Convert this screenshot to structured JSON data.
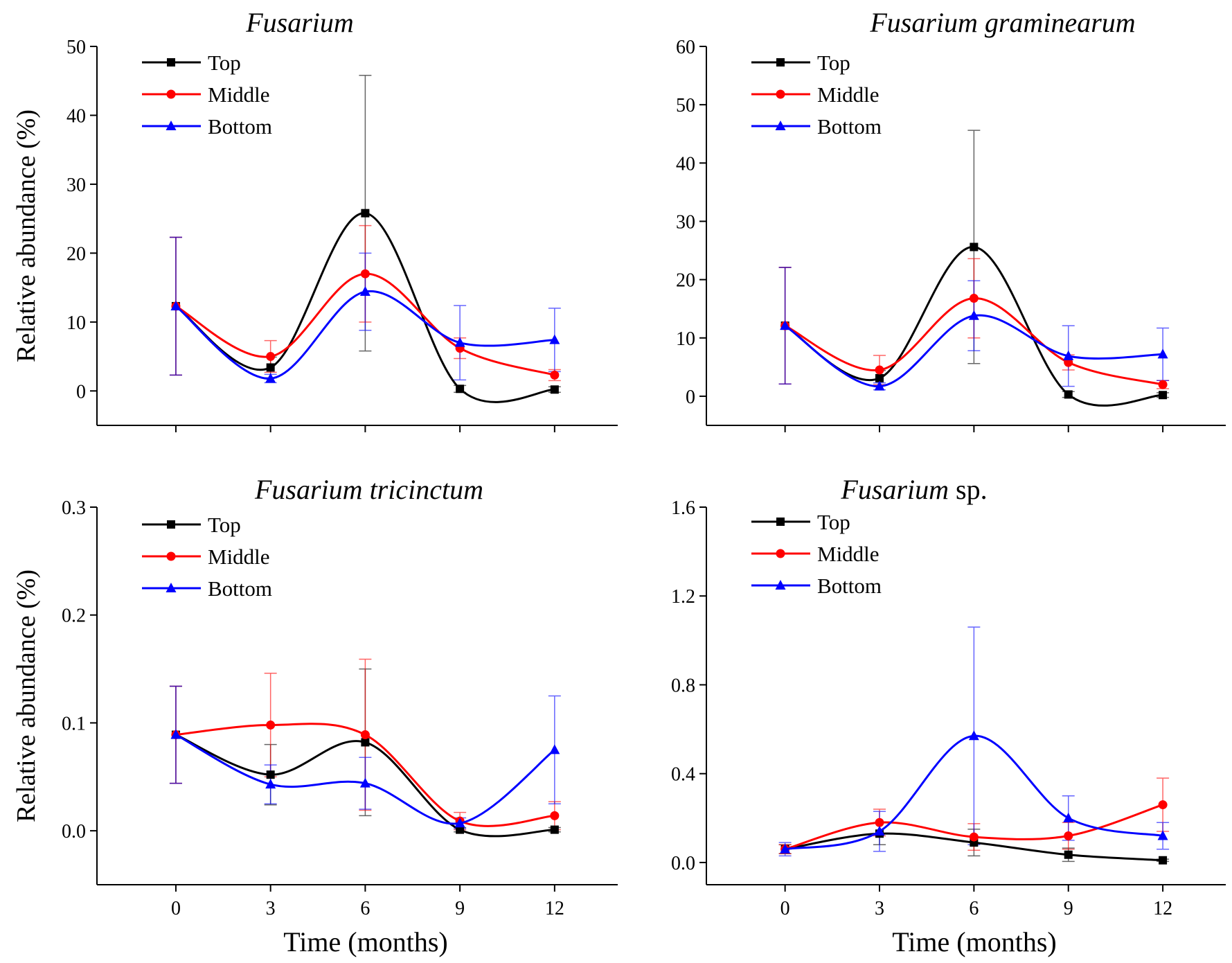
{
  "chart_data": [
    {
      "type": "line",
      "title_italic": "Fusarium",
      "title_suffix": "",
      "ylabel": "Relative abundance (%)",
      "xlabel": "",
      "ylim": [
        -5,
        50
      ],
      "yticks": [
        0,
        10,
        20,
        30,
        40,
        50
      ],
      "ytick_labels": [
        "0",
        "10",
        "20",
        "30",
        "40",
        "50"
      ],
      "x": [
        0,
        3,
        6,
        9,
        12
      ],
      "xtick_labels": [
        "",
        "",
        "",
        "",
        ""
      ],
      "series": [
        {
          "name": "Top",
          "color": "#000000",
          "marker": "square",
          "values": [
            12.3,
            3.4,
            25.8,
            0.3,
            0.2
          ],
          "err_lo": [
            10,
            1.5,
            20,
            0.5,
            0.4
          ],
          "err_hi": [
            10,
            1.5,
            20,
            0.5,
            0.4
          ]
        },
        {
          "name": "Middle",
          "color": "#ff0000",
          "marker": "circle",
          "values": [
            12.3,
            5.0,
            17.0,
            6.2,
            2.3
          ],
          "err_lo": [
            10,
            2.3,
            7.0,
            1.5,
            0.8
          ],
          "err_hi": [
            10,
            2.3,
            7.0,
            1.5,
            0.8
          ]
        },
        {
          "name": "Bottom",
          "color": "#0000ff",
          "marker": "triangle",
          "values": [
            12.3,
            1.8,
            14.4,
            7.0,
            7.4
          ],
          "err_lo": [
            10,
            0.6,
            5.6,
            5.4,
            4.6
          ],
          "err_hi": [
            10,
            0.6,
            5.6,
            5.4,
            4.6
          ]
        }
      ]
    },
    {
      "type": "line",
      "title_italic": "Fusarium graminearum",
      "title_suffix": "",
      "ylabel": "",
      "xlabel": "",
      "ylim": [
        -5,
        60
      ],
      "yticks": [
        0,
        10,
        20,
        30,
        40,
        50,
        60
      ],
      "ytick_labels": [
        "0",
        "10",
        "20",
        "30",
        "40",
        "50",
        "60"
      ],
      "x": [
        0,
        3,
        6,
        9,
        12
      ],
      "xtick_labels": [
        "",
        "",
        "",
        "",
        ""
      ],
      "series": [
        {
          "name": "Top",
          "color": "#000000",
          "marker": "square",
          "values": [
            12.1,
            3.1,
            25.6,
            0.3,
            0.2
          ],
          "err_lo": [
            10,
            1.3,
            20,
            0.5,
            0.4
          ],
          "err_hi": [
            10,
            1.3,
            20,
            0.5,
            0.4
          ]
        },
        {
          "name": "Middle",
          "color": "#ff0000",
          "marker": "circle",
          "values": [
            12.1,
            4.5,
            16.8,
            5.8,
            2.0
          ],
          "err_lo": [
            10,
            2.5,
            6.8,
            1.3,
            0.7
          ],
          "err_hi": [
            10,
            2.5,
            6.8,
            1.3,
            0.7
          ]
        },
        {
          "name": "Bottom",
          "color": "#0000ff",
          "marker": "triangle",
          "values": [
            12.1,
            1.7,
            13.8,
            6.9,
            7.2
          ],
          "err_lo": [
            10,
            0.6,
            6.0,
            5.2,
            4.5
          ],
          "err_hi": [
            10,
            0.6,
            6.0,
            5.2,
            4.5
          ]
        }
      ]
    },
    {
      "type": "line",
      "title_italic": "Fusarium tricinctum",
      "title_suffix": "",
      "ylabel": "Relative abundance (%)",
      "xlabel": "Time (months)",
      "ylim": [
        -0.05,
        0.3
      ],
      "yticks": [
        0.0,
        0.1,
        0.2,
        0.3
      ],
      "ytick_labels": [
        "0.0",
        "0.1",
        "0.2",
        "0.3"
      ],
      "x": [
        0,
        3,
        6,
        9,
        12
      ],
      "xtick_labels": [
        "0",
        "3",
        "6",
        "9",
        "12"
      ],
      "series": [
        {
          "name": "Top",
          "color": "#000000",
          "marker": "square",
          "values": [
            0.089,
            0.052,
            0.082,
            0.001,
            0.001
          ],
          "err_lo": [
            0.045,
            0.028,
            0.068,
            0.002,
            0.002
          ],
          "err_hi": [
            0.045,
            0.028,
            0.068,
            0.002,
            0.002
          ]
        },
        {
          "name": "Middle",
          "color": "#ff0000",
          "marker": "circle",
          "values": [
            0.089,
            0.098,
            0.089,
            0.009,
            0.014
          ],
          "err_lo": [
            0.045,
            0.048,
            0.07,
            0.008,
            0.013
          ],
          "err_hi": [
            0.045,
            0.048,
            0.07,
            0.008,
            0.013
          ]
        },
        {
          "name": "Bottom",
          "color": "#0000ff",
          "marker": "triangle",
          "values": [
            0.089,
            0.043,
            0.044,
            0.007,
            0.075
          ],
          "err_lo": [
            0.045,
            0.018,
            0.024,
            0.005,
            0.05
          ],
          "err_hi": [
            0.045,
            0.018,
            0.024,
            0.005,
            0.05
          ]
        }
      ]
    },
    {
      "type": "line",
      "title_italic": "Fusarium",
      "title_suffix": " sp.",
      "ylabel": "",
      "xlabel": "Time (months)",
      "ylim": [
        -0.1,
        1.6
      ],
      "yticks": [
        0.0,
        0.4,
        0.8,
        1.2,
        1.6
      ],
      "ytick_labels": [
        "0.0",
        "0.4",
        "0.8",
        "1.2",
        "1.6"
      ],
      "x": [
        0,
        3,
        6,
        9,
        12
      ],
      "xtick_labels": [
        "0",
        "3",
        "6",
        "9",
        "12"
      ],
      "series": [
        {
          "name": "Top",
          "color": "#000000",
          "marker": "square",
          "values": [
            0.06,
            0.13,
            0.09,
            0.035,
            0.01
          ],
          "err_lo": [
            0.02,
            0.05,
            0.06,
            0.03,
            0.005
          ],
          "err_hi": [
            0.02,
            0.05,
            0.06,
            0.03,
            0.005
          ]
        },
        {
          "name": "Middle",
          "color": "#ff0000",
          "marker": "circle",
          "values": [
            0.06,
            0.18,
            0.115,
            0.12,
            0.26
          ],
          "err_lo": [
            0.02,
            0.06,
            0.06,
            0.06,
            0.12
          ],
          "err_hi": [
            0.02,
            0.06,
            0.06,
            0.06,
            0.12
          ]
        },
        {
          "name": "Bottom",
          "color": "#0000ff",
          "marker": "triangle",
          "values": [
            0.06,
            0.14,
            0.57,
            0.2,
            0.12
          ],
          "err_lo": [
            0.03,
            0.09,
            0.49,
            0.1,
            0.06
          ],
          "err_hi": [
            0.03,
            0.09,
            0.49,
            0.1,
            0.06
          ]
        }
      ]
    }
  ]
}
